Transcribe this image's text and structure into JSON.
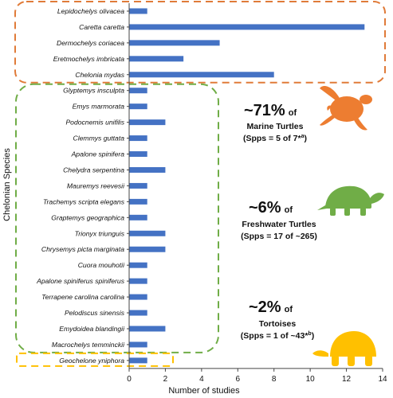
{
  "chart_data": {
    "type": "bar",
    "orientation": "horizontal",
    "categories": [
      "Lepidochelys olivacea",
      "Caretta caretta",
      "Dermochelys coriacea",
      "Eretmochelys imbricata",
      "Chelonia mydas",
      "Glyptemys insculpta",
      "Emys marmorata",
      "Podocnemis unifilis",
      "Clemmys guttata",
      "Apalone spinifera",
      "Chelydra serpentina",
      "Mauremys reevesii",
      "Trachemys scripta elegans",
      "Graptemys geographica",
      "Trionyx triunguis",
      "Chrysemys picta marginata",
      "Cuora mouhotii",
      "Apalone spiniferus spiniferus",
      "Terrapene carolina carolina",
      "Pelodiscus sinensis",
      "Emydoidea blandingii",
      "Macrochelys temminckii",
      "Geochelone yniphora"
    ],
    "values": [
      1,
      13,
      5,
      3,
      8,
      1,
      1,
      2,
      1,
      1,
      2,
      1,
      1,
      1,
      2,
      2,
      1,
      1,
      1,
      1,
      2,
      1,
      1
    ],
    "xlabel": "Number of studies",
    "ylabel": "Chelonian Species",
    "xlim": [
      0,
      14
    ],
    "xticks": [
      "0",
      "2",
      "4",
      "6",
      "8",
      "10",
      "12",
      "14"
    ],
    "bar_color": "#4472c4",
    "grid": false,
    "groups": [
      {
        "name": "Marine Turtles",
        "count": 5,
        "box_color": "#e07b39",
        "silhouette_color": "#ed7d31",
        "percent": "~71%",
        "of_word": "of",
        "line1": "Marine Turtles",
        "line2": "(Spps = 5 of 7*",
        "sup": "a",
        "close": ")"
      },
      {
        "name": "Freshwater Turtles",
        "count": 17,
        "box_color": "#70ad47",
        "silhouette_color": "#70ad47",
        "percent": "~6%",
        "of_word": "of",
        "line1": "Freshwater Turtles",
        "line2": "(Spps = 17 of ~265)",
        "sup": "",
        "close": ""
      },
      {
        "name": "Tortoises",
        "count": 1,
        "box_color": "#ffc000",
        "silhouette_color": "#ffc000",
        "percent": "~2%",
        "of_word": "of",
        "line1": "Tortoises",
        "line2": "(Spps = 1 of ~43*",
        "sup": "b",
        "close": ")"
      }
    ]
  }
}
